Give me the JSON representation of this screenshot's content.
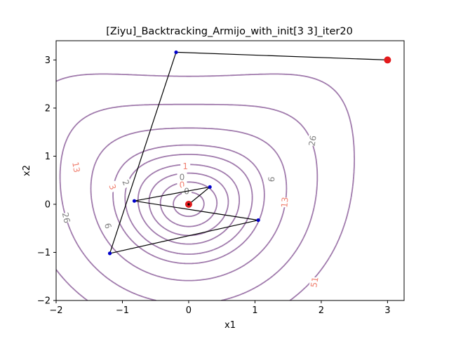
{
  "chart_data": {
    "type": "line",
    "title": "[Ziyu]_Backtracking_Armijo_with_init[3 3]_iter20",
    "xlabel": "x1",
    "ylabel": "x2",
    "xlim": [
      -2,
      3.25
    ],
    "ylim": [
      -2,
      3.4
    ],
    "x_ticks": [
      -2,
      -1,
      0,
      1,
      2,
      3
    ],
    "y_ticks": [
      -2,
      -1,
      0,
      1,
      2,
      3
    ],
    "x_tick_labels": [
      "−2",
      "−1",
      "0",
      "1",
      "2",
      "3"
    ],
    "y_tick_labels": [
      "−2",
      "−1",
      "0",
      "1",
      "2",
      "3"
    ],
    "grid": false,
    "contour_levels": [
      0,
      1,
      2,
      3,
      6,
      13,
      26,
      51
    ],
    "contour_labels": [
      {
        "text": "0",
        "x": -0.1,
        "y": 0.56,
        "color": "#808080",
        "rotation": 0
      },
      {
        "text": "0",
        "x": -0.1,
        "y": 0.4,
        "color": "#f08070",
        "rotation": 0
      },
      {
        "text": "0",
        "x": -0.03,
        "y": 0.27,
        "color": "#808080",
        "rotation": 0
      },
      {
        "text": "1",
        "x": -0.05,
        "y": 0.79,
        "color": "#f08070",
        "rotation": 0
      },
      {
        "text": "2",
        "x": -0.95,
        "y": 0.45,
        "color": "#808080",
        "rotation": 68
      },
      {
        "text": "3",
        "x": -1.15,
        "y": 0.36,
        "color": "#f08070",
        "rotation": 70
      },
      {
        "text": "6",
        "x": -1.22,
        "y": -0.45,
        "color": "#808080",
        "rotation": 75
      },
      {
        "text": "6",
        "x": 1.25,
        "y": 0.52,
        "color": "#808080",
        "rotation": -85
      },
      {
        "text": "13",
        "x": -1.7,
        "y": 0.77,
        "color": "#f08070",
        "rotation": 80
      },
      {
        "text": "13",
        "x": 1.45,
        "y": 0.04,
        "color": "#f08070",
        "rotation": -85
      },
      {
        "text": "26",
        "x": -1.85,
        "y": -0.28,
        "color": "#808080",
        "rotation": 78
      },
      {
        "text": "26",
        "x": 1.87,
        "y": 1.32,
        "color": "#808080",
        "rotation": -80
      },
      {
        "text": "51",
        "x": 1.9,
        "y": -1.62,
        "color": "#f08070",
        "rotation": -80
      }
    ],
    "iterates": {
      "x": [
        3.0,
        -0.19,
        -1.19,
        1.05,
        -0.82,
        0.32,
        0.0
      ],
      "y": [
        3.0,
        3.16,
        -1.02,
        -0.33,
        0.07,
        0.36,
        0.0
      ]
    },
    "start_point": {
      "x": 3.0,
      "y": 3.0
    },
    "end_point": {
      "x": 0.0,
      "y": 0.0
    },
    "colors": {
      "contour": "#a07aac",
      "iterate_line": "#000000",
      "iterate_marker": "#0000cc",
      "endpoint_marker": "#e31a1c"
    }
  }
}
